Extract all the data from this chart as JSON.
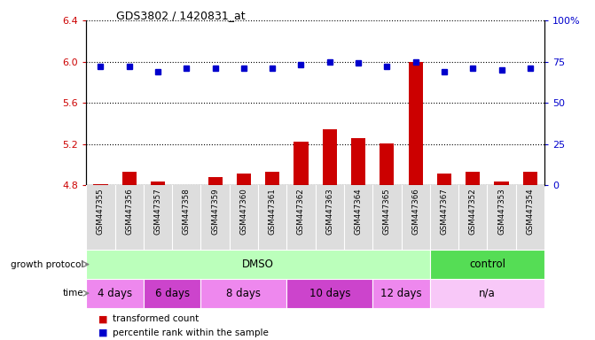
{
  "title": "GDS3802 / 1420831_at",
  "samples": [
    "GSM447355",
    "GSM447356",
    "GSM447357",
    "GSM447358",
    "GSM447359",
    "GSM447360",
    "GSM447361",
    "GSM447362",
    "GSM447363",
    "GSM447364",
    "GSM447365",
    "GSM447366",
    "GSM447367",
    "GSM447352",
    "GSM447353",
    "GSM447354"
  ],
  "bar_values": [
    4.81,
    4.93,
    4.84,
    4.8,
    4.88,
    4.91,
    4.93,
    5.22,
    5.34,
    5.26,
    5.21,
    6.0,
    4.91,
    4.93,
    4.84,
    4.93
  ],
  "dot_values": [
    72,
    72,
    69,
    71,
    71,
    71,
    71,
    73,
    75,
    74,
    72,
    75,
    69,
    71,
    70,
    71
  ],
  "ylim_left": [
    4.8,
    6.4
  ],
  "ylim_right": [
    0,
    100
  ],
  "yticks_left": [
    4.8,
    5.2,
    5.6,
    6.0,
    6.4
  ],
  "yticks_right": [
    0,
    25,
    50,
    75,
    100
  ],
  "bar_color": "#cc0000",
  "dot_color": "#0000cc",
  "protocol_groups": [
    {
      "label": "DMSO",
      "start": 0,
      "end": 12,
      "color": "#bbffbb"
    },
    {
      "label": "control",
      "start": 12,
      "end": 16,
      "color": "#55dd55"
    }
  ],
  "time_groups": [
    {
      "label": "4 days",
      "start": 0,
      "end": 2,
      "color": "#ee88ee"
    },
    {
      "label": "6 days",
      "start": 2,
      "end": 4,
      "color": "#cc44cc"
    },
    {
      "label": "8 days",
      "start": 4,
      "end": 7,
      "color": "#ee88ee"
    },
    {
      "label": "10 days",
      "start": 7,
      "end": 10,
      "color": "#cc44cc"
    },
    {
      "label": "12 days",
      "start": 10,
      "end": 12,
      "color": "#ee88ee"
    },
    {
      "label": "n/a",
      "start": 12,
      "end": 16,
      "color": "#f8c8f8"
    }
  ],
  "legend_items": [
    {
      "label": "transformed count",
      "color": "#cc0000"
    },
    {
      "label": "percentile rank within the sample",
      "color": "#0000cc"
    }
  ],
  "growth_protocol_label": "growth protocol",
  "time_label": "time"
}
